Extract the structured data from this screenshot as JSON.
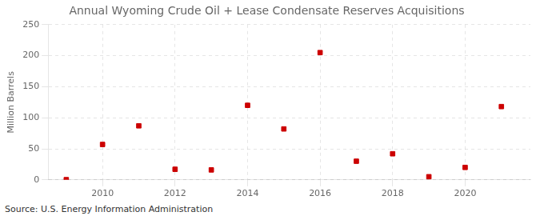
{
  "chart_data": {
    "type": "scatter",
    "title": "Annual Wyoming Crude Oil + Lease Condensate Reserves Acquisitions",
    "ylabel": "Million Barrels",
    "annotation": "Source: U.S. Energy Information Administration",
    "x": [
      2009,
      2010,
      2011,
      2012,
      2013,
      2014,
      2015,
      2016,
      2017,
      2018,
      2019,
      2020,
      2021
    ],
    "values": [
      0.3,
      57,
      87,
      17,
      16,
      120,
      82,
      205,
      30,
      42,
      5,
      20,
      118
    ],
    "color": "#cc0000",
    "marker": "square",
    "xlim": [
      2008.5,
      2021.8
    ],
    "xticks": [
      2010,
      2012,
      2014,
      2016,
      2018,
      2020
    ],
    "ylim": [
      0,
      250
    ],
    "yticks": [
      0,
      50,
      100,
      150,
      200,
      250
    ],
    "grid": true
  }
}
